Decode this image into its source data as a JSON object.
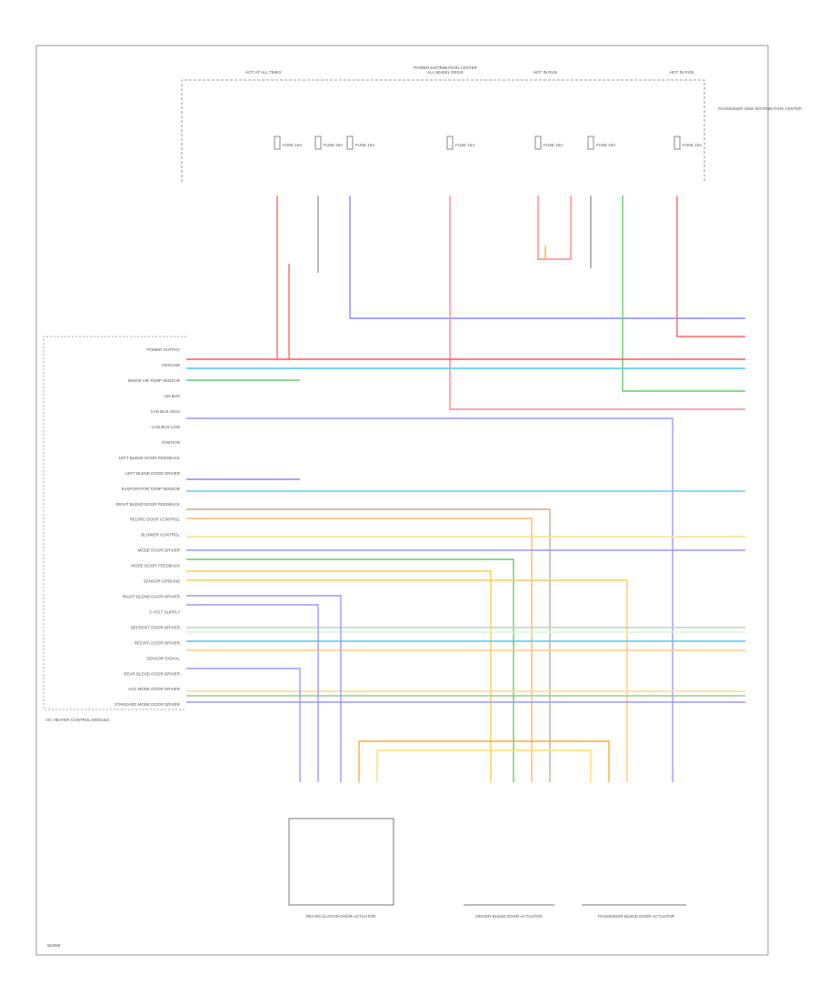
{
  "header": {
    "feeds": [
      "HOT AT ALL TIMES",
      "ALL WHEEL DRIVE",
      "HOT IN RUN",
      "HOT IN RUN"
    ]
  },
  "fuses": [
    "FUSE 10A",
    "FUSE 20A",
    "FUSE 10A",
    "FUSE 15A",
    "FUSE 10A",
    "FUSE 20A",
    "FUSE 10A"
  ],
  "module": {
    "title": "A/C HEATER CONTROL MODULE",
    "pins": [
      "POWER OUTPUT",
      "GROUND",
      "INSIDE AIR TEMP SENSOR",
      "LIN BUS",
      "CAN BUS HIGH",
      "CAN BUS LOW",
      "IGNITION",
      "LEFT BLEND DOOR FEEDBACK",
      "LEFT BLEND DOOR DRIVER",
      "EVAPORATOR TEMP SENSOR",
      "RIGHT BLEND DOOR FEEDBACK",
      "RECIRC DOOR CONTROL",
      "BLOWER CONTROL",
      "MODE DOOR DRIVER",
      "MODE DOOR FEEDBACK",
      "SENSOR GROUND",
      "RIGHT BLEND DOOR DRIVER",
      "5 VOLT SUPPLY",
      "DEFROST DOOR DRIVER",
      "RECIRC DOOR DRIVER",
      "SENSOR SIGNAL",
      "REAR BLEND DOOR DRIVER",
      "AUX MODE DOOR DRIVER",
      "STANDARD MODE DOOR DRIVER"
    ]
  },
  "side_note": "PASSENGER SIDE DISTRIBUTION CENTER",
  "connector_note": "POWER DISTRIBUTION CENTER",
  "components": [
    "RECIRCULATION DOOR ACTUATOR",
    "DRIVER BLEND DOOR ACTUATOR",
    "PASSENGER BLEND DOOR ACTUATOR"
  ],
  "footer": "W2068"
}
